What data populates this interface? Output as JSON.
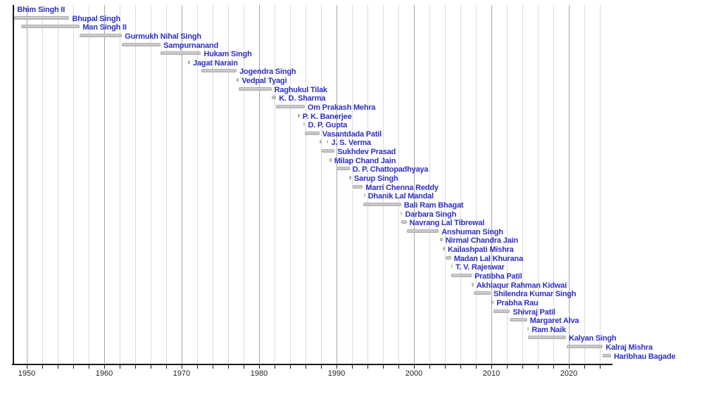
{
  "chart_data": {
    "type": "timeline",
    "title": "",
    "description": "Horizontal bar timeline of office holders, one row per person, gray tenure bars with blue name labels",
    "x_axis": {
      "start": 1948.2,
      "end": 2025.5,
      "major_ticks": [
        1950,
        1960,
        1970,
        1980,
        1990,
        2000,
        2010,
        2020
      ],
      "minor_tick_interval": 2,
      "grid": true,
      "legend": "none"
    },
    "colors": {
      "label": "#2e2ec4",
      "bar": "#c6c6c6",
      "grid_minor": "#dadada",
      "grid_major": "#a6a6a6",
      "axis": "#1a1a1a"
    },
    "people": [
      {
        "name": "Bhim Singh II",
        "segments": [
          [
            1948.25,
            1948.4
          ]
        ]
      },
      {
        "name": "Bhupal Singh",
        "segments": [
          [
            1948.35,
            1955.5
          ]
        ]
      },
      {
        "name": "Man Singh II",
        "segments": [
          [
            1949.3,
            1956.85
          ]
        ]
      },
      {
        "name": "Gurmukh Nihal Singh",
        "segments": [
          [
            1956.85,
            1962.3
          ]
        ]
      },
      {
        "name": "Sampurnanand",
        "segments": [
          [
            1962.3,
            1967.3
          ]
        ]
      },
      {
        "name": "Hukam Singh",
        "segments": [
          [
            1967.3,
            1972.5
          ]
        ]
      },
      {
        "name": "Jagat Narain",
        "segments": [
          [
            1970.85,
            1971.1
          ]
        ]
      },
      {
        "name": "Jogendra Singh",
        "segments": [
          [
            1972.5,
            1977.1
          ]
        ]
      },
      {
        "name": "Vedpal Tyagi",
        "segments": [
          [
            1977.1,
            1977.4
          ]
        ]
      },
      {
        "name": "Raghukul Tilak",
        "segments": [
          [
            1977.4,
            1981.6
          ]
        ]
      },
      {
        "name": "K. D. Sharma",
        "segments": [
          [
            1981.6,
            1982.2
          ]
        ]
      },
      {
        "name": "Om Prakash Mehra",
        "segments": [
          [
            1982.2,
            1985.9
          ]
        ]
      },
      {
        "name": "P. K. Banerjee",
        "segments": [
          [
            1985.0,
            1985.25
          ]
        ]
      },
      {
        "name": "D. P. Gupta",
        "segments": [
          [
            1985.75,
            1985.95
          ]
        ]
      },
      {
        "name": "Vasantdada Patil",
        "segments": [
          [
            1985.9,
            1987.8
          ]
        ]
      },
      {
        "name": "J. S. Verma",
        "segments": [
          [
            1987.8,
            1988.1
          ],
          [
            1988.75,
            1988.95
          ]
        ]
      },
      {
        "name": "Sukhdev Prasad",
        "segments": [
          [
            1988.1,
            1989.75
          ]
        ]
      },
      {
        "name": "Milap Chand Jain",
        "segments": [
          [
            1989.1,
            1989.35
          ]
        ]
      },
      {
        "name": "D. P. Chattopadhyaya",
        "segments": [
          [
            1990.0,
            1991.7
          ]
        ]
      },
      {
        "name": "Sarup Singh",
        "segments": [
          [
            1991.6,
            1991.9
          ]
        ]
      },
      {
        "name": "Marri Chenna Reddy",
        "segments": [
          [
            1992.1,
            1993.4
          ]
        ]
      },
      {
        "name": "Dhanik Lal Mandal",
        "segments": [
          [
            1993.5,
            1993.7
          ]
        ]
      },
      {
        "name": "Bali Ram Bhagat",
        "segments": [
          [
            1993.45,
            1998.35
          ]
        ]
      },
      {
        "name": "Darbara Singh",
        "segments": [
          [
            1998.3,
            1998.5
          ]
        ]
      },
      {
        "name": "Navrang Lal Tibrewal",
        "segments": [
          [
            1998.4,
            1999.05
          ]
        ]
      },
      {
        "name": "Anshuman Singh",
        "segments": [
          [
            1999.05,
            2003.2
          ]
        ]
      },
      {
        "name": "Nirmal Chandra Jain",
        "segments": [
          [
            2003.35,
            2003.7
          ]
        ]
      },
      {
        "name": "Kailashpati Mishra",
        "segments": [
          [
            2003.75,
            2004.0
          ]
        ]
      },
      {
        "name": "Madan Lal Khurana",
        "segments": [
          [
            2004.05,
            2004.8
          ]
        ]
      },
      {
        "name": "T. V. Rajeswar",
        "segments": [
          [
            2004.8,
            2005.0
          ]
        ]
      },
      {
        "name": "Pratibha Patil",
        "segments": [
          [
            2004.85,
            2007.45
          ]
        ]
      },
      {
        "name": "Akhlaqur Rahman Kidwai",
        "segments": [
          [
            2007.45,
            2007.7
          ]
        ]
      },
      {
        "name": "Shilendra Kumar Singh",
        "segments": [
          [
            2007.7,
            2009.9
          ]
        ]
      },
      {
        "name": "Prabha Rau",
        "segments": [
          [
            2009.9,
            2010.3
          ]
        ]
      },
      {
        "name": "Shivraj Patil",
        "segments": [
          [
            2010.3,
            2012.4
          ]
        ]
      },
      {
        "name": "Margaret Alva",
        "segments": [
          [
            2012.4,
            2014.6
          ]
        ]
      },
      {
        "name": "Ram Naik",
        "segments": [
          [
            2014.6,
            2014.85
          ]
        ]
      },
      {
        "name": "Kalyan Singh",
        "segments": [
          [
            2014.75,
            2019.65
          ]
        ]
      },
      {
        "name": "Kalraj Mishra",
        "segments": [
          [
            2019.7,
            2024.4
          ]
        ]
      },
      {
        "name": "Haribhau Bagade",
        "segments": [
          [
            2024.4,
            2025.45
          ]
        ]
      }
    ]
  }
}
